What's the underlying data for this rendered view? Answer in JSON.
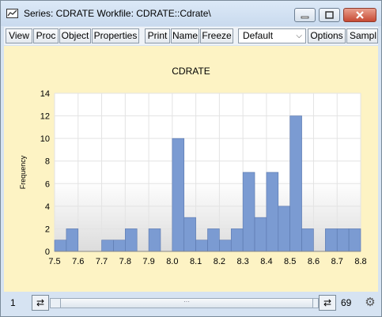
{
  "window": {
    "title": "Series: CDRATE   Workfile: CDRATE::Cdrate\\"
  },
  "toolbar": {
    "buttons": [
      "View",
      "Proc",
      "Object",
      "Properties",
      "Print",
      "Name",
      "Freeze",
      "Options",
      "Sampl"
    ],
    "dropdown_value": "Default"
  },
  "chart_data": {
    "type": "bar",
    "title": "CDRATE",
    "xlabel": "",
    "ylabel": "Frequency",
    "ylim": [
      0,
      14
    ],
    "xlim": [
      7.5,
      8.8
    ],
    "xticks": [
      "7.5",
      "7.6",
      "7.7",
      "7.8",
      "7.9",
      "8.0",
      "8.1",
      "8.2",
      "8.3",
      "8.4",
      "8.5",
      "8.6",
      "8.7",
      "8.8"
    ],
    "yticks": [
      "0",
      "2",
      "4",
      "6",
      "8",
      "10",
      "12",
      "14"
    ],
    "bin_width": 0.05,
    "bins": [
      {
        "x": 7.5,
        "count": 1
      },
      {
        "x": 7.55,
        "count": 2
      },
      {
        "x": 7.6,
        "count": 0
      },
      {
        "x": 7.65,
        "count": 0
      },
      {
        "x": 7.7,
        "count": 1
      },
      {
        "x": 7.75,
        "count": 1
      },
      {
        "x": 7.8,
        "count": 2
      },
      {
        "x": 7.85,
        "count": 0
      },
      {
        "x": 7.9,
        "count": 2
      },
      {
        "x": 7.95,
        "count": 0
      },
      {
        "x": 8.0,
        "count": 10
      },
      {
        "x": 8.05,
        "count": 3
      },
      {
        "x": 8.1,
        "count": 1
      },
      {
        "x": 8.15,
        "count": 2
      },
      {
        "x": 8.2,
        "count": 1
      },
      {
        "x": 8.25,
        "count": 2
      },
      {
        "x": 8.3,
        "count": 7
      },
      {
        "x": 8.35,
        "count": 3
      },
      {
        "x": 8.4,
        "count": 7
      },
      {
        "x": 8.45,
        "count": 4
      },
      {
        "x": 8.5,
        "count": 12
      },
      {
        "x": 8.55,
        "count": 2
      },
      {
        "x": 8.6,
        "count": 0
      },
      {
        "x": 8.65,
        "count": 2
      },
      {
        "x": 8.7,
        "count": 2
      },
      {
        "x": 8.75,
        "count": 2
      }
    ],
    "bar_color": "#7b9bd2",
    "grid": true
  },
  "status": {
    "left_value": "1",
    "right_value": "69"
  },
  "colors": {
    "plot_bg": "#fdf3c4",
    "bar": "#7b9bd2",
    "close_button": "#c74a34"
  }
}
